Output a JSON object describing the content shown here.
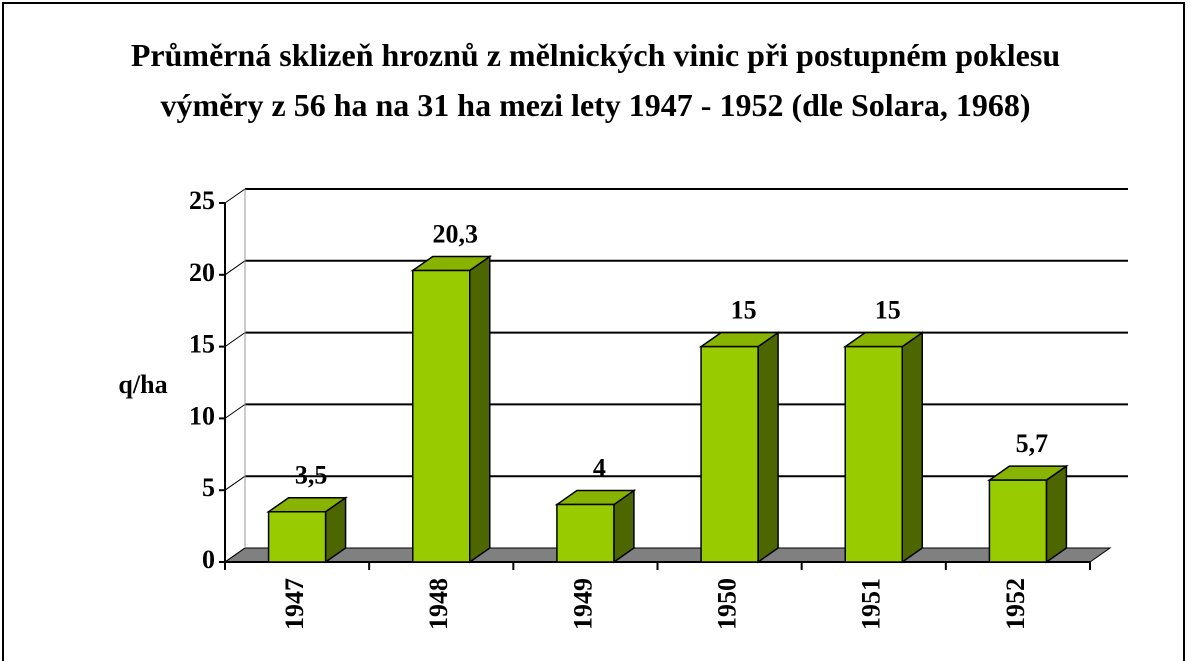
{
  "chart_data": {
    "type": "bar3d",
    "title": "Průměrná sklizeň hroznů z mělnických vinic při postupném poklesu výměry z 56 ha na 31 ha mezi lety 1947 - 1952 (dle Solara, 1968)",
    "y_label": "q/ha",
    "categories": [
      "1947",
      "1948",
      "1949",
      "1950",
      "1951",
      "1952"
    ],
    "values": [
      3.5,
      20.3,
      4,
      15,
      15,
      5.7
    ],
    "value_labels": [
      "3,5",
      "20,3",
      "4",
      "15",
      "15",
      "5,7"
    ],
    "color": "#99cc00",
    "ylim": [
      0,
      25
    ],
    "yticks": [
      0,
      5,
      10,
      15,
      20,
      25
    ],
    "grid": true
  }
}
